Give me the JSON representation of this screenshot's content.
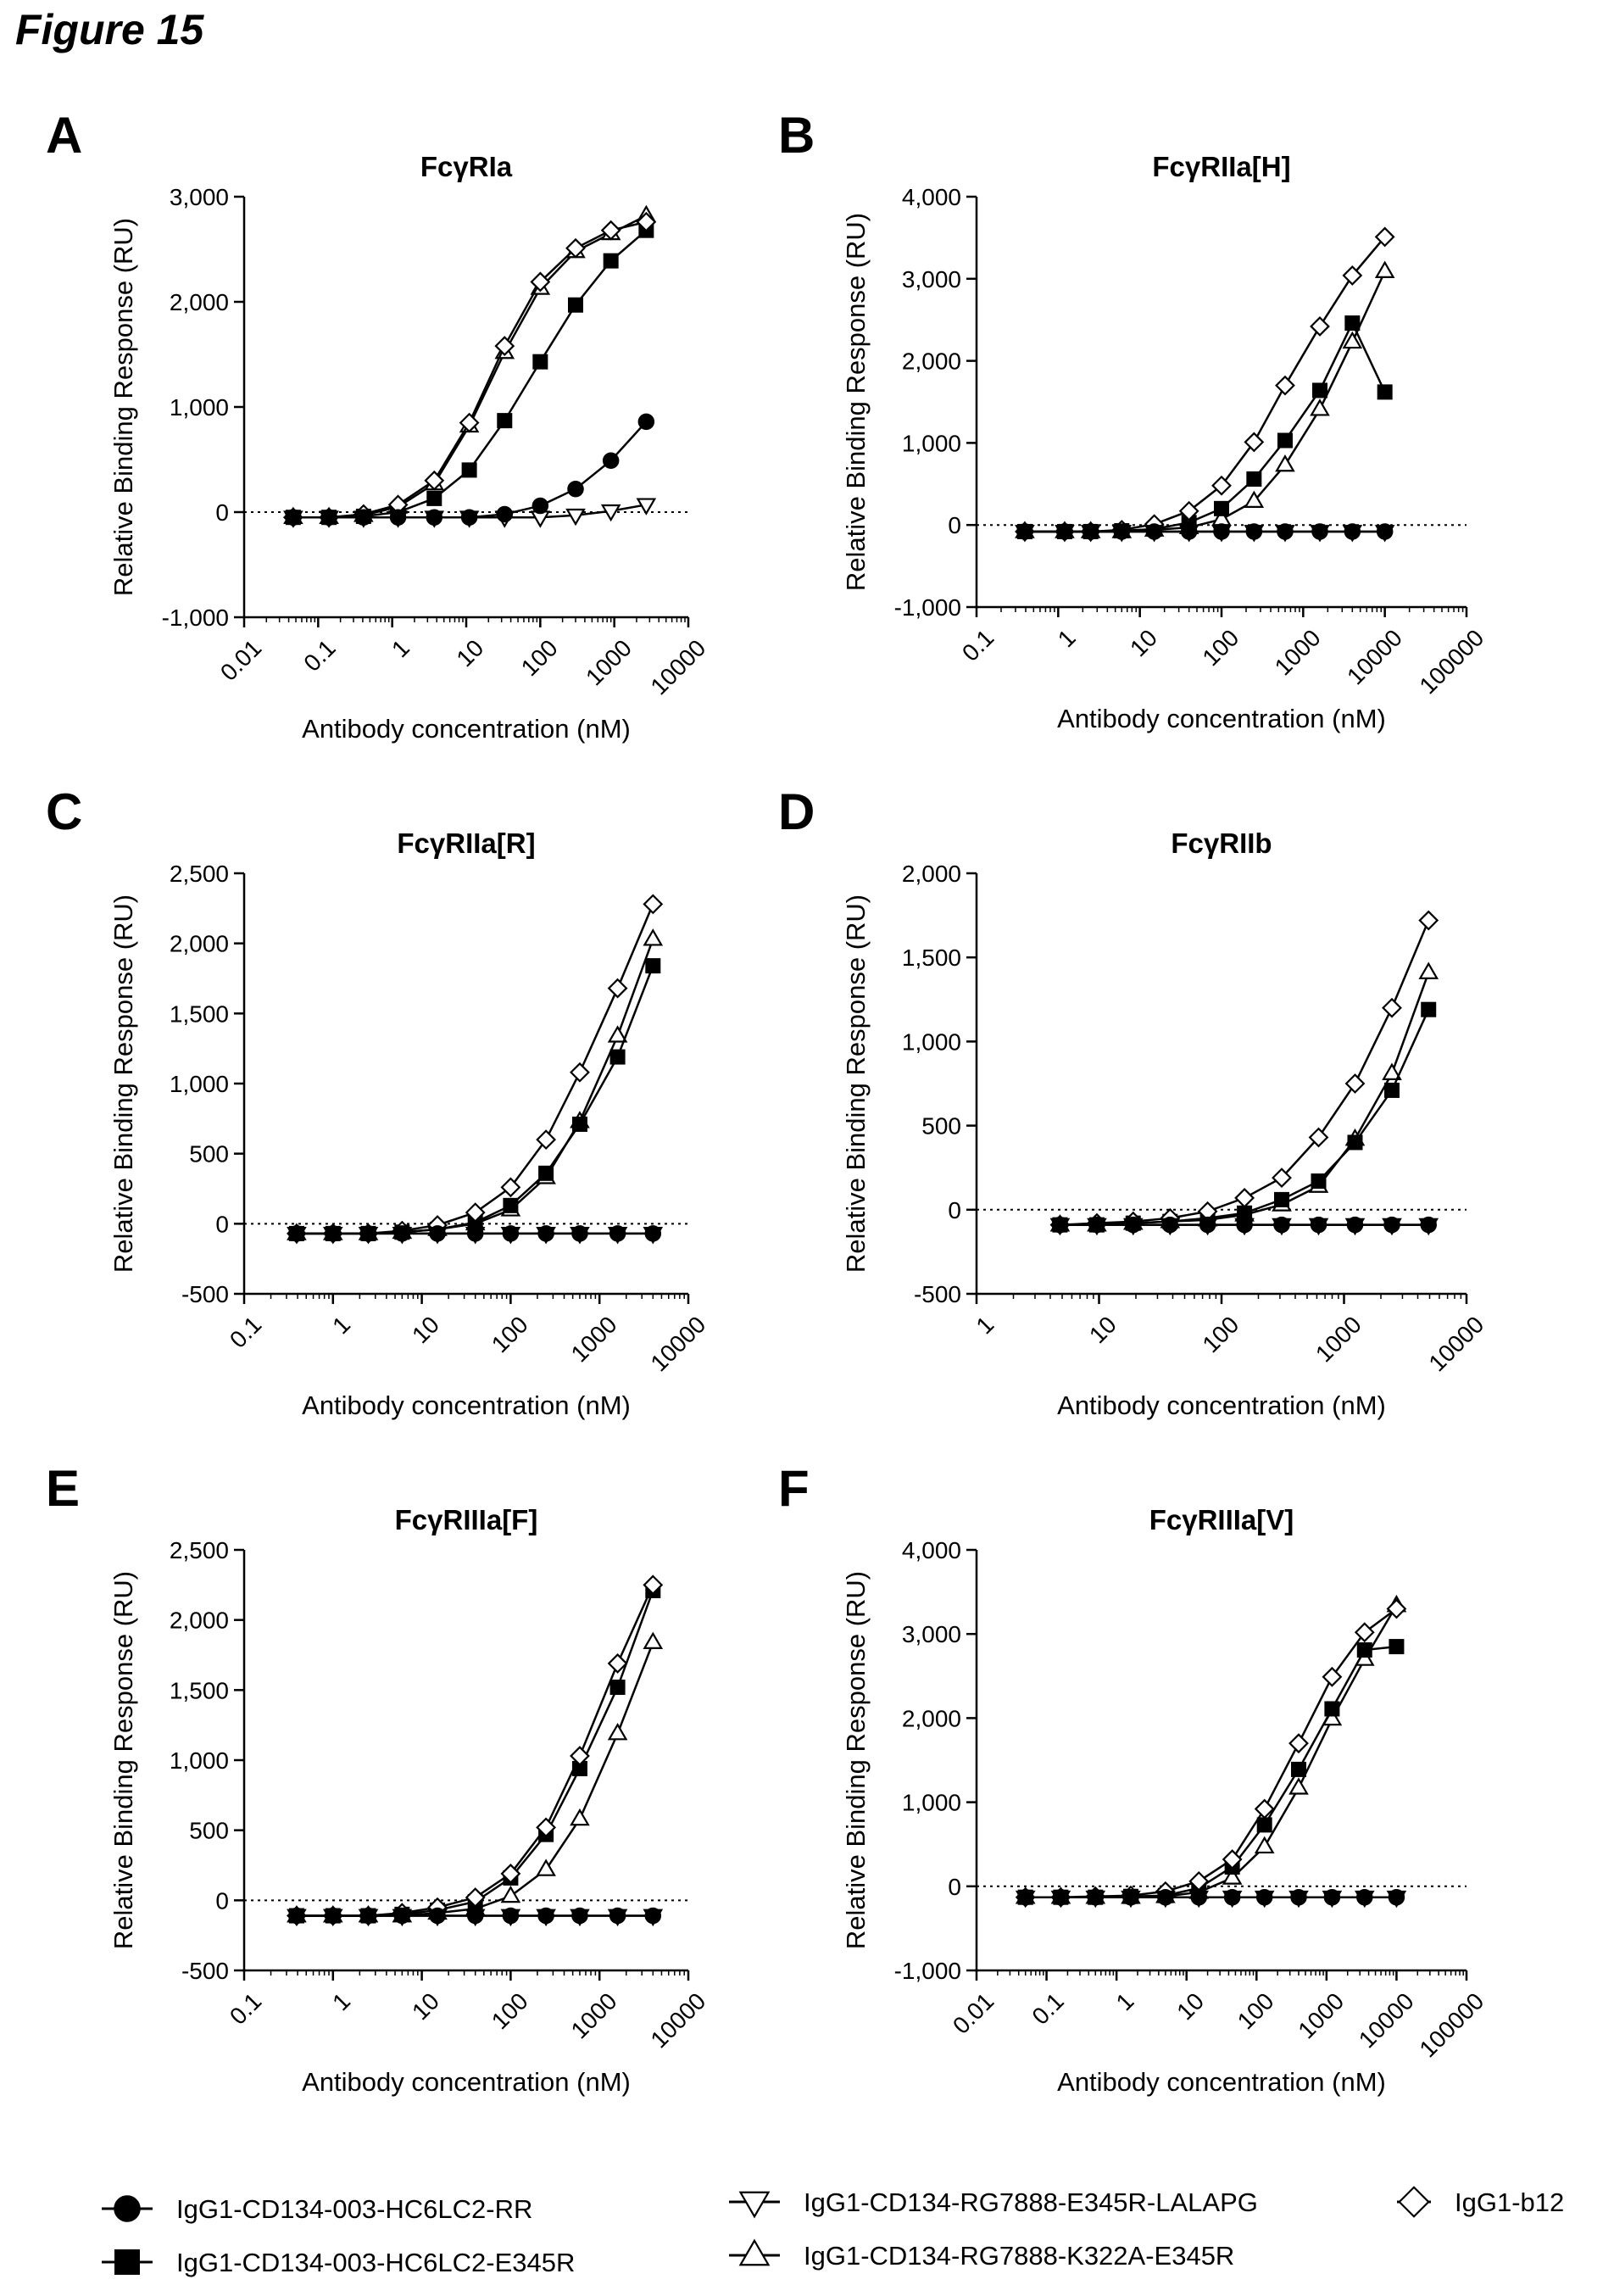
{
  "figure_title": "Figure 15",
  "legend": [
    {
      "key": "rr",
      "name": "IgG1-CD134-003-HC6LC2-RR",
      "marker": "circle"
    },
    {
      "key": "e345r",
      "name": "IgG1-CD134-003-HC6LC2-E345R",
      "marker": "square"
    },
    {
      "key": "lalapg",
      "name": "IgG1-CD134-RG7888-E345R-LALAPG",
      "marker": "triangle-down"
    },
    {
      "key": "k322a",
      "name": "IgG1-CD134-RG7888-K322A-E345R",
      "marker": "triangle-up"
    },
    {
      "key": "b12",
      "name": "IgG1-b12",
      "marker": "diamond"
    }
  ],
  "chart_data": [
    {
      "panel": "A",
      "title": "FcγRIa",
      "type": "line",
      "xscale": "log",
      "xlabel": "Antibody concentration (nM)",
      "ylabel": "Relative Binding Response (RU)",
      "xlim": [
        0.01,
        10000
      ],
      "xticks": [
        "0.01",
        "0.1",
        "1",
        "10",
        "100",
        "1000",
        "10000"
      ],
      "ylim": [
        -1000,
        3000
      ],
      "yticks": [
        "-1,000",
        "0",
        "1,000",
        "2,000",
        "3,000"
      ],
      "x": [
        0.046,
        0.14,
        0.41,
        1.2,
        3.7,
        11,
        33,
        100,
        300,
        900,
        2700
      ],
      "series": [
        {
          "key": "rr",
          "values": [
            -50,
            -50,
            -50,
            -50,
            -50,
            -50,
            -20,
            60,
            220,
            490,
            860
          ]
        },
        {
          "key": "e345r",
          "values": [
            -50,
            -50,
            -40,
            0,
            130,
            400,
            870,
            1430,
            1970,
            2390,
            2680
          ]
        },
        {
          "key": "lalapg",
          "values": [
            -50,
            -50,
            -50,
            -50,
            -50,
            -50,
            -50,
            -50,
            -30,
            10,
            70
          ]
        },
        {
          "key": "k322a",
          "values": [
            -50,
            -50,
            -30,
            50,
            270,
            820,
            1520,
            2130,
            2480,
            2650,
            2820
          ]
        },
        {
          "key": "b12",
          "values": [
            -50,
            -50,
            -20,
            70,
            300,
            850,
            1580,
            2190,
            2510,
            2680,
            2760
          ]
        }
      ]
    },
    {
      "panel": "B",
      "title": "FcγRIIa[H]",
      "type": "line",
      "xscale": "log",
      "xlabel": "Antibody concentration (nM)",
      "ylabel": "Relative Binding Response (RU)",
      "xlim": [
        0.1,
        100000
      ],
      "xticks": [
        "0.1",
        "1",
        "10",
        "100",
        "1000",
        "10000",
        "100000"
      ],
      "ylim": [
        -1000,
        4000
      ],
      "yticks": [
        "-1,000",
        "0",
        "1,000",
        "2,000",
        "3,000",
        "4,000"
      ],
      "x": [
        0.39,
        1.2,
        2.5,
        6,
        15,
        40,
        100,
        250,
        600,
        1600,
        4000,
        10000
      ],
      "series": [
        {
          "key": "rr",
          "values": [
            -80,
            -80,
            -80,
            -80,
            -80,
            -80,
            -80,
            -80,
            -80,
            -80,
            -80,
            -80
          ]
        },
        {
          "key": "e345r",
          "values": [
            -80,
            -80,
            -80,
            -70,
            -50,
            30,
            200,
            560,
            1030,
            1640,
            2460,
            1620
          ]
        },
        {
          "key": "lalapg",
          "values": [
            -80,
            -80,
            -80,
            -80,
            -80,
            -80,
            -80,
            -80,
            -80,
            -80,
            -80,
            -80
          ]
        },
        {
          "key": "k322a",
          "values": [
            -80,
            -80,
            -80,
            -80,
            -60,
            -30,
            70,
            290,
            730,
            1410,
            2230,
            3090
          ]
        },
        {
          "key": "b12",
          "values": [
            -80,
            -80,
            -80,
            -60,
            10,
            170,
            480,
            1010,
            1700,
            2420,
            3040,
            3510
          ]
        }
      ]
    },
    {
      "panel": "C",
      "title": "FcγRIIa[R]",
      "type": "line",
      "xscale": "log",
      "xlabel": "Antibody concentration (nM)",
      "ylabel": "Relative Binding Response (RU)",
      "xlim": [
        0.1,
        10000
      ],
      "xticks": [
        "0.1",
        "1",
        "10",
        "100",
        "1000",
        "10000"
      ],
      "ylim": [
        -500,
        2500
      ],
      "yticks": [
        "-500",
        "0",
        "500",
        "1,000",
        "1,500",
        "2,000",
        "2,500"
      ],
      "x": [
        0.39,
        1,
        2.5,
        6,
        15,
        40,
        100,
        250,
        600,
        1600,
        4000
      ],
      "series": [
        {
          "key": "rr",
          "values": [
            -70,
            -70,
            -70,
            -70,
            -70,
            -70,
            -70,
            -70,
            -70,
            -70,
            -70
          ]
        },
        {
          "key": "e345r",
          "values": [
            -70,
            -70,
            -70,
            -60,
            -40,
            10,
            130,
            360,
            710,
            1190,
            1840
          ]
        },
        {
          "key": "lalapg",
          "values": [
            -70,
            -70,
            -70,
            -70,
            -70,
            -70,
            -70,
            -70,
            -70,
            -70,
            -70
          ]
        },
        {
          "key": "k322a",
          "values": [
            -70,
            -70,
            -70,
            -60,
            -40,
            0,
            100,
            330,
            730,
            1340,
            2030
          ]
        },
        {
          "key": "b12",
          "values": [
            -70,
            -70,
            -70,
            -50,
            -10,
            80,
            260,
            600,
            1080,
            1680,
            2280
          ]
        }
      ]
    },
    {
      "panel": "D",
      "title": "FcγRIIb",
      "type": "line",
      "xscale": "log",
      "xlabel": "Antibody concentration (nM)",
      "ylabel": "Relative Binding Response (RU)",
      "xlim": [
        1,
        10000
      ],
      "xticks": [
        "1",
        "10",
        "100",
        "1000",
        "10000"
      ],
      "ylim": [
        -500,
        2000
      ],
      "yticks": [
        "-500",
        "0",
        "500",
        "1,000",
        "1,500",
        "2,000"
      ],
      "x": [
        4.8,
        9.6,
        19,
        38,
        77,
        154,
        310,
        620,
        1230,
        2460,
        4900
      ],
      "series": [
        {
          "key": "rr",
          "values": [
            -90,
            -90,
            -90,
            -90,
            -90,
            -90,
            -90,
            -90,
            -90,
            -90,
            -90
          ]
        },
        {
          "key": "e345r",
          "values": [
            -90,
            -90,
            -80,
            -70,
            -50,
            -20,
            60,
            170,
            400,
            710,
            1190
          ]
        },
        {
          "key": "lalapg",
          "values": [
            -90,
            -90,
            -90,
            -90,
            -90,
            -90,
            -90,
            -90,
            -90,
            -90,
            -90
          ]
        },
        {
          "key": "k322a",
          "values": [
            -90,
            -90,
            -80,
            -70,
            -60,
            -30,
            30,
            140,
            420,
            810,
            1410
          ]
        },
        {
          "key": "b12",
          "values": [
            -90,
            -80,
            -70,
            -50,
            -10,
            70,
            190,
            430,
            750,
            1200,
            1720
          ]
        }
      ]
    },
    {
      "panel": "E",
      "title": "FcγRIIIa[F]",
      "type": "line",
      "xscale": "log",
      "xlabel": "Antibody concentration (nM)",
      "ylabel": "Relative Binding Response (RU)",
      "xlim": [
        0.1,
        10000
      ],
      "xticks": [
        "0.1",
        "1",
        "10",
        "100",
        "1000",
        "10000"
      ],
      "ylim": [
        -500,
        2500
      ],
      "yticks": [
        "-500",
        "0",
        "500",
        "1,000",
        "1,500",
        "2,000",
        "2,500"
      ],
      "x": [
        0.39,
        1,
        2.5,
        6,
        15,
        40,
        100,
        250,
        600,
        1600,
        4000
      ],
      "series": [
        {
          "key": "rr",
          "values": [
            -110,
            -110,
            -110,
            -110,
            -110,
            -110,
            -110,
            -110,
            -110,
            -110,
            -110
          ]
        },
        {
          "key": "e345r",
          "values": [
            -110,
            -110,
            -110,
            -100,
            -70,
            -10,
            160,
            470,
            940,
            1520,
            2210
          ]
        },
        {
          "key": "lalapg",
          "values": [
            -110,
            -110,
            -110,
            -110,
            -110,
            -110,
            -110,
            -110,
            -110,
            -110,
            -110
          ]
        },
        {
          "key": "k322a",
          "values": [
            -110,
            -110,
            -110,
            -110,
            -90,
            -60,
            30,
            220,
            580,
            1190,
            1840
          ]
        },
        {
          "key": "b12",
          "values": [
            -110,
            -110,
            -110,
            -90,
            -50,
            20,
            190,
            520,
            1030,
            1690,
            2250
          ]
        }
      ]
    },
    {
      "panel": "F",
      "title": "FcγRIIIa[V]",
      "type": "line",
      "xscale": "log",
      "xlabel": "Antibody concentration (nM)",
      "ylabel": "Relative Binding Response (RU)",
      "xlim": [
        0.01,
        100000
      ],
      "xticks": [
        "0.01",
        "0.1",
        "1",
        "10",
        "100",
        "1000",
        "10000",
        "100000"
      ],
      "ylim": [
        -1000,
        4000
      ],
      "yticks": [
        "-1,000",
        "0",
        "1,000",
        "2,000",
        "3,000",
        "4,000"
      ],
      "x": [
        0.05,
        0.16,
        0.5,
        1.6,
        5,
        15,
        45,
        130,
        400,
        1200,
        3500,
        10000
      ],
      "series": [
        {
          "key": "rr",
          "values": [
            -130,
            -130,
            -130,
            -130,
            -130,
            -130,
            -130,
            -130,
            -130,
            -130,
            -130,
            -130
          ]
        },
        {
          "key": "e345r",
          "values": [
            -130,
            -130,
            -130,
            -120,
            -110,
            -20,
            230,
            730,
            1390,
            2110,
            2810,
            2850
          ]
        },
        {
          "key": "lalapg",
          "values": [
            -130,
            -130,
            -130,
            -130,
            -130,
            -130,
            -130,
            -130,
            -130,
            -130,
            -130,
            -130
          ]
        },
        {
          "key": "k322a",
          "values": [
            -130,
            -130,
            -130,
            -130,
            -120,
            -70,
            100,
            470,
            1170,
            1990,
            2700,
            3340
          ]
        },
        {
          "key": "b12",
          "values": [
            -130,
            -130,
            -120,
            -110,
            -60,
            60,
            320,
            920,
            1700,
            2490,
            3020,
            3300
          ]
        }
      ]
    }
  ]
}
